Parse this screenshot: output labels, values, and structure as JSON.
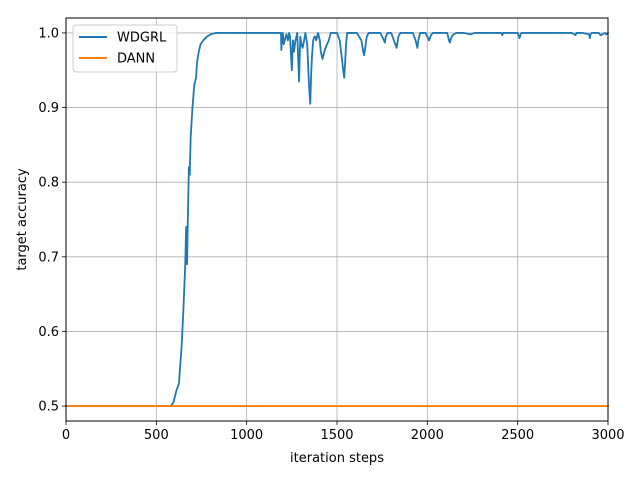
{
  "chart_data": {
    "type": "line",
    "title": "",
    "xlabel": "iteration steps",
    "ylabel": "target accuracy",
    "xlim": [
      0,
      3000
    ],
    "ylim": [
      0.48,
      1.02
    ],
    "xticks": [
      0,
      500,
      1000,
      1500,
      2000,
      2500,
      3000
    ],
    "yticks": [
      0.5,
      0.6,
      0.7,
      0.8,
      0.9,
      1.0
    ],
    "xtick_labels": [
      "0",
      "500",
      "1000",
      "1500",
      "2000",
      "2500",
      "3000"
    ],
    "ytick_labels": [
      "0.5",
      "0.6",
      "0.7",
      "0.8",
      "0.9",
      "1.0"
    ],
    "grid": true,
    "legend_position": "upper-left",
    "series": [
      {
        "name": "WDGRL",
        "color": "#1f77b4",
        "x": [
          0,
          500,
          580,
          595,
          610,
          625,
          640,
          650,
          655,
          660,
          665,
          670,
          675,
          680,
          685,
          690,
          695,
          700,
          710,
          720,
          725,
          735,
          745,
          760,
          780,
          800,
          830,
          900,
          1000,
          1100,
          1190,
          1192,
          1196,
          1200,
          1205,
          1220,
          1228,
          1235,
          1240,
          1250,
          1256,
          1262,
          1270,
          1280,
          1290,
          1297,
          1303,
          1310,
          1318,
          1325,
          1335,
          1345,
          1352,
          1357,
          1362,
          1368,
          1375,
          1380,
          1385,
          1395,
          1405,
          1410,
          1420,
          1430,
          1437,
          1445,
          1455,
          1465,
          1475,
          1485,
          1500,
          1515,
          1525,
          1532,
          1540,
          1545,
          1550,
          1556,
          1565,
          1580,
          1610,
          1635,
          1645,
          1650,
          1656,
          1665,
          1675,
          1685,
          1700,
          1740,
          1760,
          1765,
          1770,
          1780,
          1800,
          1815,
          1830,
          1840,
          1850,
          1860,
          1880,
          1900,
          1920,
          1935,
          1940,
          1945,
          1950,
          1960,
          1990,
          2010,
          2020,
          2030,
          2040,
          2060,
          2090,
          2110,
          2120,
          2125,
          2130,
          2140,
          2160,
          2200,
          2240,
          2260,
          2300,
          2400,
          2410,
          2415,
          2420,
          2440,
          2500,
          2505,
          2510,
          2515,
          2520,
          2560,
          2600,
          2700,
          2800,
          2820,
          2825,
          2830,
          2860,
          2895,
          2900,
          2903,
          2910,
          2940,
          2950,
          2955,
          2960,
          2975,
          2985,
          2990,
          3000
        ],
        "values": [
          0.5,
          0.5,
          0.5,
          0.505,
          0.52,
          0.53,
          0.58,
          0.63,
          0.66,
          0.69,
          0.74,
          0.69,
          0.76,
          0.82,
          0.81,
          0.86,
          0.88,
          0.9,
          0.93,
          0.94,
          0.96,
          0.975,
          0.985,
          0.99,
          0.995,
          0.998,
          1.0,
          1.0,
          1.0,
          1.0,
          1.0,
          0.977,
          0.993,
          1.0,
          0.985,
          0.998,
          0.99,
          1.0,
          0.995,
          0.95,
          0.99,
          0.975,
          0.99,
          1.0,
          0.935,
          0.995,
          0.985,
          0.98,
          0.99,
          1.0,
          0.985,
          0.93,
          0.905,
          0.945,
          0.97,
          0.99,
          0.995,
          0.995,
          0.99,
          1.0,
          0.99,
          0.975,
          0.965,
          0.975,
          0.98,
          0.985,
          0.99,
          1.0,
          1.0,
          1.0,
          1.0,
          0.99,
          0.97,
          0.955,
          0.94,
          0.96,
          0.985,
          1.0,
          1.0,
          1.0,
          1.0,
          0.99,
          0.975,
          0.97,
          0.98,
          0.995,
          1.0,
          1.0,
          1.0,
          1.0,
          0.99,
          0.987,
          0.995,
          1.0,
          1.0,
          0.99,
          0.98,
          0.995,
          1.0,
          1.0,
          1.0,
          1.0,
          1.0,
          0.99,
          0.985,
          0.98,
          0.99,
          1.0,
          1.0,
          0.99,
          0.997,
          1.0,
          1.0,
          1.0,
          1.0,
          1.0,
          0.99,
          0.987,
          0.992,
          0.997,
          1.0,
          1.0,
          0.998,
          1.0,
          1.0,
          1.0,
          1.0,
          0.997,
          1.0,
          1.0,
          1.0,
          0.997,
          0.993,
          0.997,
          1.0,
          1.0,
          1.0,
          1.0,
          1.0,
          0.997,
          1.0,
          1.0,
          1.0,
          0.998,
          0.993,
          0.998,
          1.0,
          1.0,
          1.0,
          0.998,
          0.997,
          0.999,
          1.0,
          0.998,
          1.0
        ]
      },
      {
        "name": "DANN",
        "color": "#ff7f0e",
        "x": [
          0,
          500,
          1000,
          1500,
          2000,
          2500,
          3000
        ],
        "values": [
          0.5,
          0.5,
          0.5,
          0.5,
          0.5,
          0.5,
          0.5
        ]
      }
    ]
  }
}
